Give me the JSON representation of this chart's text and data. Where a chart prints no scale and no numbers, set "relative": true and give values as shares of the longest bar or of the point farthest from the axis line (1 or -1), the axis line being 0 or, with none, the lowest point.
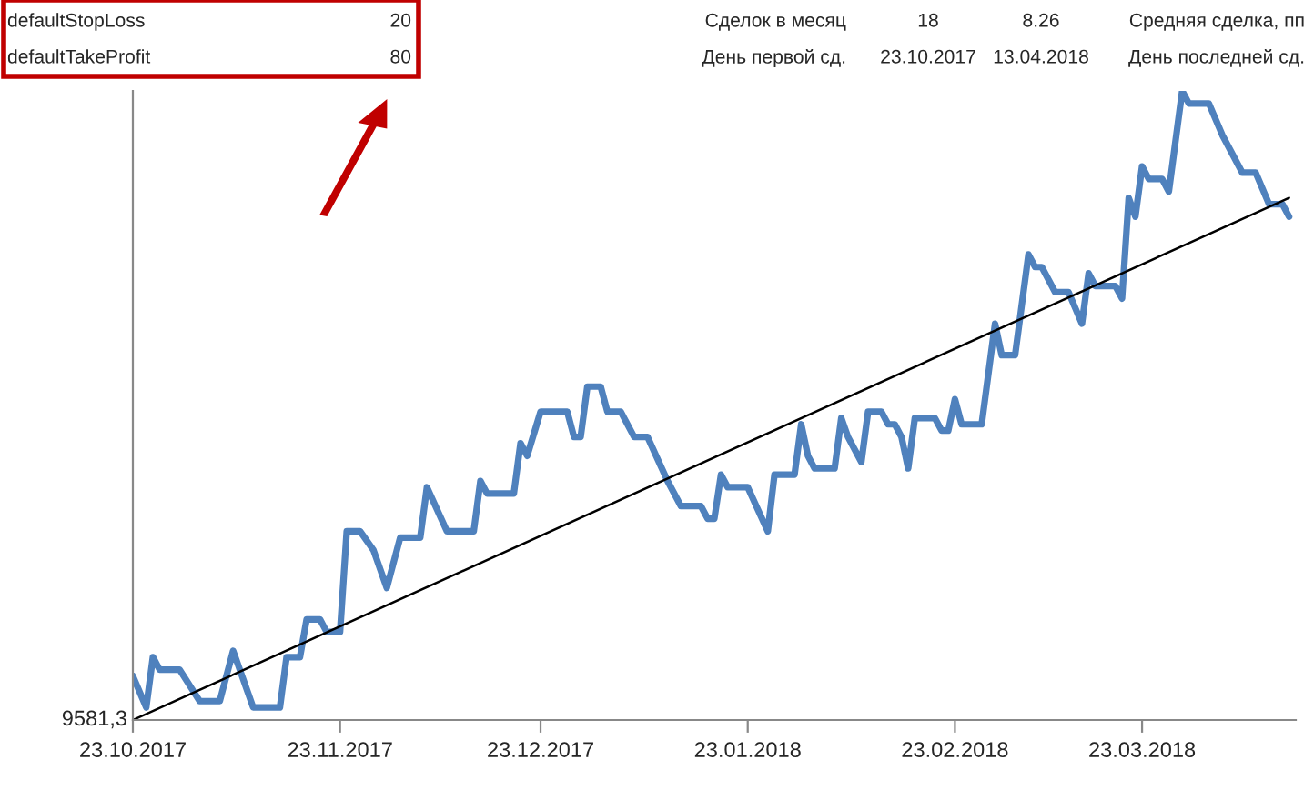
{
  "chart_data": {
    "type": "line",
    "relative": true,
    "grid": false,
    "legend": false,
    "marker": "none",
    "line_style": "solid",
    "xlim": [
      "2017-10-23",
      "2018-04-15"
    ],
    "xticks": [
      {
        "value": "2017-10-23",
        "label": "23.10.2017"
      },
      {
        "value": "2017-11-23",
        "label": "23.11.2017"
      },
      {
        "value": "2017-12-23",
        "label": "23.12.2017"
      },
      {
        "value": "2018-01-23",
        "label": "23.01.2018"
      },
      {
        "value": "2018-02-23",
        "label": "23.02.2018"
      },
      {
        "value": "2018-03-23",
        "label": "23.03.2018"
      }
    ],
    "series": [
      {
        "color": "#4f81bd",
        "x": [
          "2017-10-23",
          "2017-10-25",
          "2017-10-26",
          "2017-10-27",
          "2017-10-30",
          "2017-11-02",
          "2017-11-05",
          "2017-11-07",
          "2017-11-10",
          "2017-11-14",
          "2017-11-15",
          "2017-11-17",
          "2017-11-18",
          "2017-11-20",
          "2017-11-21",
          "2017-11-23",
          "2017-11-24",
          "2017-11-26",
          "2017-11-28",
          "2017-11-30",
          "2017-12-02",
          "2017-12-05",
          "2017-12-06",
          "2017-12-09",
          "2017-12-13",
          "2017-12-14",
          "2017-12-15",
          "2017-12-19",
          "2017-12-20",
          "2017-12-21",
          "2017-12-23",
          "2017-12-27",
          "2017-12-28",
          "2017-12-29",
          "2017-12-30",
          "2018-01-01",
          "2018-01-02",
          "2018-01-04",
          "2018-01-06",
          "2018-01-08",
          "2018-01-11",
          "2018-01-13",
          "2018-01-16",
          "2018-01-17",
          "2018-01-18",
          "2018-01-19",
          "2018-01-20",
          "2018-01-23",
          "2018-01-26",
          "2018-01-27",
          "2018-01-30",
          "2018-01-31",
          "2018-02-01",
          "2018-02-02",
          "2018-02-05",
          "2018-02-06",
          "2018-02-07",
          "2018-02-09",
          "2018-02-10",
          "2018-02-12",
          "2018-02-13",
          "2018-02-14",
          "2018-02-15",
          "2018-02-16",
          "2018-02-17",
          "2018-02-20",
          "2018-02-21",
          "2018-02-22",
          "2018-02-23",
          "2018-02-24",
          "2018-02-25",
          "2018-02-27",
          "2018-03-01",
          "2018-03-02",
          "2018-03-04",
          "2018-03-06",
          "2018-03-07",
          "2018-03-08",
          "2018-03-10",
          "2018-03-12",
          "2018-03-14",
          "2018-03-15",
          "2018-03-16",
          "2018-03-19",
          "2018-03-20",
          "2018-03-21",
          "2018-03-22",
          "2018-03-23",
          "2018-03-24",
          "2018-03-26",
          "2018-03-27",
          "2018-03-29",
          "2018-03-30",
          "2018-04-02",
          "2018-04-04",
          "2018-04-07",
          "2018-04-09",
          "2018-04-11",
          "2018-04-13",
          "2018-04-14"
        ],
        "values": [
          0.07,
          0.02,
          0.1,
          0.08,
          0.08,
          0.03,
          0.03,
          0.11,
          0.02,
          0.02,
          0.1,
          0.1,
          0.16,
          0.16,
          0.14,
          0.14,
          0.3,
          0.3,
          0.27,
          0.21,
          0.29,
          0.29,
          0.37,
          0.3,
          0.3,
          0.38,
          0.36,
          0.36,
          0.44,
          0.42,
          0.49,
          0.49,
          0.45,
          0.45,
          0.53,
          0.53,
          0.49,
          0.49,
          0.45,
          0.45,
          0.38,
          0.34,
          0.34,
          0.32,
          0.32,
          0.39,
          0.37,
          0.37,
          0.3,
          0.39,
          0.39,
          0.47,
          0.42,
          0.4,
          0.4,
          0.48,
          0.45,
          0.41,
          0.49,
          0.49,
          0.47,
          0.47,
          0.45,
          0.4,
          0.48,
          0.48,
          0.46,
          0.46,
          0.51,
          0.47,
          0.47,
          0.47,
          0.63,
          0.58,
          0.58,
          0.74,
          0.72,
          0.72,
          0.68,
          0.68,
          0.63,
          0.71,
          0.69,
          0.69,
          0.67,
          0.83,
          0.8,
          0.88,
          0.86,
          0.86,
          0.84,
          1.0,
          0.98,
          0.98,
          0.93,
          0.87,
          0.87,
          0.82,
          0.82,
          0.8
        ]
      },
      {
        "color": "#000000",
        "x": [
          "2017-10-23",
          "2018-04-14"
        ],
        "values": [
          0.0,
          0.83
        ]
      }
    ],
    "annotations": [
      "defaultStopLoss",
      "20",
      "Сделок в месяц",
      "18",
      "8.26",
      "Средняя сделка, пп",
      "defaultTakeProfit",
      "80",
      "День первой сд.",
      "23.10.2017",
      "13.04.2018",
      "День последней сд.",
      "9581,3"
    ]
  }
}
